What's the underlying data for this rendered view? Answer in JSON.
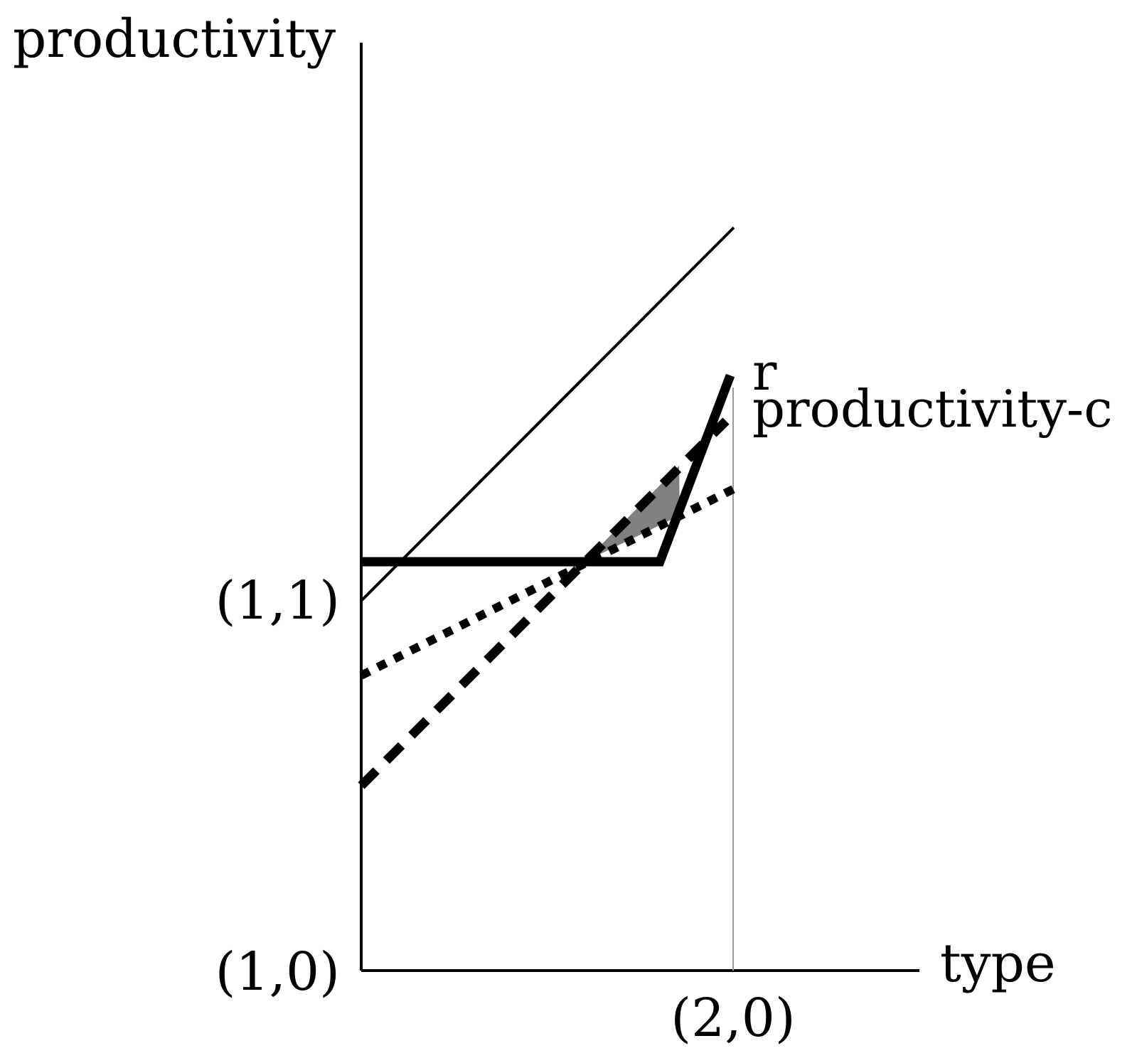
{
  "labels": {
    "y_axis": "productivity",
    "x_axis": "type",
    "origin": "(1,0)",
    "y_tick": "(1,1)",
    "x_tick": "(2,0)",
    "curve_r": "r",
    "curve_productivity_c": "productivity-c"
  },
  "colors": {
    "ink": "#000000",
    "shade": "#808080",
    "guide": "#9a9a9a"
  }
}
